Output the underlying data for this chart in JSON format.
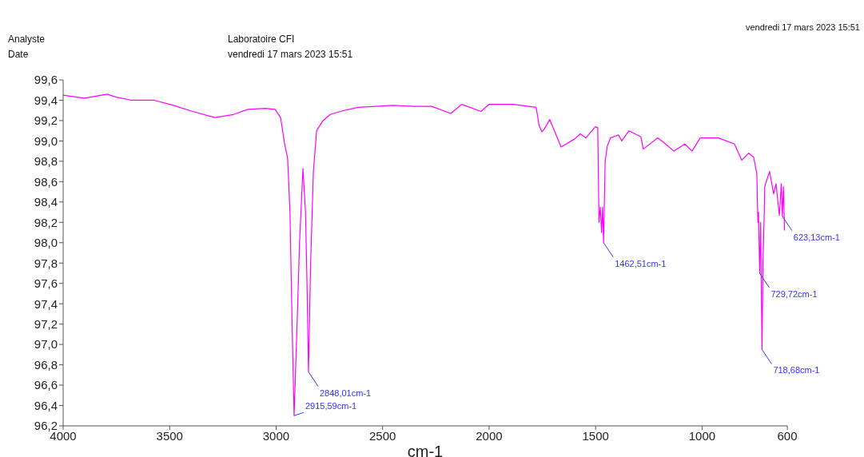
{
  "chart_data": {
    "type": "line",
    "annotations": [
      "Analyste",
      "Laboratoire CFI",
      "Date",
      "vendredi 17 mars 2023 15:51",
      "vendredi 17 mars 2023 15:51",
      {
        "text": "2915,59cm-1",
        "x": 2915.59,
        "y": 96.3
      },
      {
        "text": "2848,01cm-1",
        "x": 2848.01,
        "y": 96.73
      },
      {
        "text": "1462,51cm-1",
        "x": 1462.51,
        "y": 98.0
      },
      {
        "text": "729,72cm-1",
        "x": 729.72,
        "y": 97.7
      },
      {
        "text": "718,68cm-1",
        "x": 718.68,
        "y": 96.95
      },
      {
        "text": "623,13cm-1",
        "x": 623.13,
        "y": 98.26
      }
    ],
    "xlabel": "cm-1",
    "xlim": [
      4000,
      600
    ],
    "xticks": [
      4000,
      3500,
      3000,
      2500,
      2000,
      1500,
      1000,
      600
    ],
    "ylim": [
      96.2,
      99.6
    ],
    "yticks": [
      {
        "value": 96.2,
        "label": "96,2"
      },
      {
        "value": 96.4,
        "label": "96,4"
      },
      {
        "value": 96.6,
        "label": "96,6"
      },
      {
        "value": 96.8,
        "label": "96,8"
      },
      {
        "value": 97.0,
        "label": "97,0"
      },
      {
        "value": 97.2,
        "label": "97,2"
      },
      {
        "value": 97.4,
        "label": "97,4"
      },
      {
        "value": 97.6,
        "label": "97,6"
      },
      {
        "value": 97.8,
        "label": "97,8"
      },
      {
        "value": 98.0,
        "label": "98,0"
      },
      {
        "value": 98.2,
        "label": "98,2"
      },
      {
        "value": 98.4,
        "label": "98,4"
      },
      {
        "value": 98.6,
        "label": "98,6"
      },
      {
        "value": 98.8,
        "label": "98,8"
      },
      {
        "value": 99.0,
        "label": "99,0"
      },
      {
        "value": 99.2,
        "label": "99,2"
      },
      {
        "value": 99.4,
        "label": "99,4"
      },
      {
        "value": 99.6,
        "label": "99,6"
      }
    ],
    "grid": false,
    "legend": false,
    "marker": "none",
    "line_style": "solid",
    "series": [
      {
        "color": "#ff00ff",
        "x": [
          4000,
          3900,
          3793,
          3750,
          3677,
          3572,
          3482,
          3392,
          3288,
          3200,
          3133,
          3050,
          3005,
          2979,
          2960,
          2946,
          2935,
          2925,
          2915.59,
          2900,
          2890,
          2874,
          2862,
          2855,
          2848.01,
          2838,
          2825,
          2810,
          2780,
          2746,
          2700,
          2616,
          2530,
          2450,
          2357,
          2270,
          2180,
          2128,
          2038,
          2000,
          1884,
          1779,
          1765,
          1752,
          1740,
          1715,
          1662,
          1598,
          1572,
          1546,
          1501,
          1490,
          1484,
          1478,
          1472,
          1467,
          1462.51,
          1455,
          1445,
          1430,
          1392,
          1377,
          1343,
          1287,
          1276,
          1208,
          1171,
          1133,
          1081,
          1047,
          1009,
          923,
          848,
          814,
          781,
          758,
          743,
          738,
          735,
          729.72,
          725,
          722,
          718.68,
          714,
          708,
          706,
          683,
          664,
          653,
          637,
          628,
          623.13,
          618,
          615,
          613
        ],
        "values": [
          99.45,
          99.42,
          99.46,
          99.43,
          99.4,
          99.4,
          99.35,
          99.29,
          99.23,
          99.26,
          99.31,
          99.32,
          99.31,
          99.23,
          98.97,
          98.83,
          98.3,
          97.2,
          96.3,
          97.3,
          98.0,
          98.73,
          98.3,
          97.6,
          96.73,
          97.8,
          98.7,
          99.1,
          99.2,
          99.26,
          99.29,
          99.33,
          99.34,
          99.35,
          99.34,
          99.34,
          99.27,
          99.36,
          99.29,
          99.36,
          99.36,
          99.33,
          99.15,
          99.09,
          99.12,
          99.21,
          98.94,
          99.02,
          99.07,
          99.03,
          99.14,
          99.13,
          98.2,
          98.35,
          98.1,
          98.35,
          98.0,
          98.8,
          98.95,
          99.03,
          99.06,
          99.0,
          99.1,
          99.04,
          98.92,
          99.03,
          98.97,
          98.9,
          98.97,
          98.9,
          99.03,
          99.03,
          98.97,
          98.81,
          98.88,
          98.84,
          98.68,
          98.2,
          98.3,
          97.7,
          98.2,
          97.6,
          96.95,
          97.8,
          98.3,
          98.55,
          98.7,
          98.48,
          98.58,
          98.27,
          98.58,
          98.26,
          98.55,
          98.3,
          98.12
        ]
      }
    ]
  }
}
